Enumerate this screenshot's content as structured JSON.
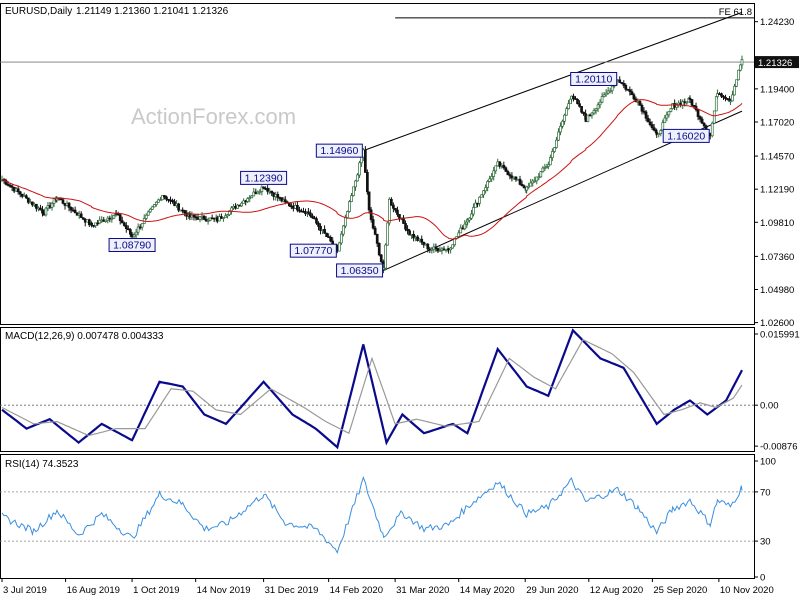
{
  "header": {
    "title": "EURUSD,Daily",
    "ohlc": "1.21149 1.21360 1.21041 1.21326"
  },
  "watermark": "ActionForex.com",
  "colors": {
    "bull": "#2e6b3a",
    "bear": "#111111",
    "sma": "#cc1111",
    "macd": "#0a0a8c",
    "signal": "#999999",
    "rsi": "#3a8fe0",
    "box_text": "#0a0a8c",
    "box_fill": "#eef0fb",
    "price_tag": "#111111"
  },
  "chart_data": [
    {
      "type": "candlestick",
      "pane": "price",
      "ylim": [
        1.025,
        1.255
      ],
      "y_ticks": [
        "1.24230",
        "1.21920",
        "1.19400",
        "1.17020",
        "1.14570",
        "1.12190",
        "1.09810",
        "1.07360",
        "1.04980",
        "1.02600"
      ],
      "current_price": "1.21326",
      "x_range": [
        "2019-07-03",
        "2020-11-26"
      ],
      "dates": [
        "3 Jul 2019",
        "16 Aug 2019",
        "1 Oct 2019",
        "14 Nov 2019",
        "31 Dec 2019",
        "14 Feb 2020",
        "31 Mar 2020",
        "14 May 2020",
        "29 Jun 2020",
        "12 Aug 2020",
        "25 Sep 2020",
        "10 Nov 2020"
      ],
      "anchors": [
        [
          "2019-07-03",
          1.129
        ],
        [
          "2019-08-01",
          1.105
        ],
        [
          "2019-08-10",
          1.116
        ],
        [
          "2019-09-03",
          1.096
        ],
        [
          "2019-09-20",
          1.104
        ],
        [
          "2019-10-01",
          1.0879
        ],
        [
          "2019-10-22",
          1.118
        ],
        [
          "2019-11-10",
          1.102
        ],
        [
          "2019-11-29",
          1.1
        ],
        [
          "2019-12-31",
          1.1239
        ],
        [
          "2020-01-15",
          1.112
        ],
        [
          "2020-01-31",
          1.105
        ],
        [
          "2020-02-20",
          1.0777
        ],
        [
          "2020-03-09",
          1.1496
        ],
        [
          "2020-03-13",
          1.106
        ],
        [
          "2020-03-23",
          1.0635
        ],
        [
          "2020-03-27",
          1.114
        ],
        [
          "2020-04-10",
          1.09
        ],
        [
          "2020-04-24",
          1.079
        ],
        [
          "2020-05-07",
          1.079
        ],
        [
          "2020-05-20",
          1.1
        ],
        [
          "2020-06-10",
          1.14
        ],
        [
          "2020-06-30",
          1.122
        ],
        [
          "2020-07-15",
          1.14
        ],
        [
          "2020-07-31",
          1.19
        ],
        [
          "2020-08-10",
          1.172
        ],
        [
          "2020-09-01",
          1.2011
        ],
        [
          "2020-09-15",
          1.185
        ],
        [
          "2020-09-28",
          1.1602
        ],
        [
          "2020-10-09",
          1.182
        ],
        [
          "2020-10-21",
          1.186
        ],
        [
          "2020-11-04",
          1.1603
        ],
        [
          "2020-11-09",
          1.192
        ],
        [
          "2020-11-18",
          1.186
        ],
        [
          "2020-11-26",
          1.215
        ]
      ],
      "sma_series": "SMA",
      "annotations": [
        {
          "label": "1.08790",
          "date": "2019-10-01",
          "price": 1.0879,
          "pos": "below"
        },
        {
          "label": "1.12390",
          "date": "2019-12-31",
          "price": 1.1239,
          "pos": "above"
        },
        {
          "label": "1.07770",
          "date": "2020-02-20",
          "price": 1.0777,
          "pos": "left"
        },
        {
          "label": "1.14960",
          "date": "2020-03-09",
          "price": 1.1496,
          "pos": "left"
        },
        {
          "label": "1.06350",
          "date": "2020-03-23",
          "price": 1.0635,
          "pos": "left"
        },
        {
          "label": "1.20110",
          "date": "2020-09-01",
          "price": 1.2011,
          "pos": "left"
        },
        {
          "label": "1.16020",
          "date": "2020-11-04",
          "price": 1.1602,
          "pos": "left"
        }
      ],
      "fib_label": "FE 61.8",
      "fib_level": 1.245,
      "fib_start": "2020-03-31",
      "channel": {
        "lower": [
          [
            "2020-03-23",
            1.0635
          ],
          [
            "2020-11-26",
            1.178
          ]
        ],
        "upper": [
          [
            "2020-03-09",
            1.1496
          ],
          [
            "2020-11-26",
            1.249
          ]
        ]
      }
    },
    {
      "type": "line",
      "pane": "macd",
      "label": "MACD(12,26,9) 0.007478 0.004333",
      "ylim": [
        -0.0098,
        0.0165
      ],
      "y_ticks": [
        "0.015991",
        "0.00",
        "-0.00876"
      ],
      "series": [
        {
          "name": "MACD",
          "anchors": [
            [
              "2019-07-03",
              -0.001
            ],
            [
              "2019-07-20",
              -0.005
            ],
            [
              "2019-08-05",
              -0.003
            ],
            [
              "2019-08-25",
              -0.008
            ],
            [
              "2019-09-10",
              -0.004
            ],
            [
              "2019-10-01",
              -0.0075
            ],
            [
              "2019-10-20",
              0.005
            ],
            [
              "2019-11-05",
              0.004
            ],
            [
              "2019-11-20",
              -0.002
            ],
            [
              "2019-12-05",
              -0.004
            ],
            [
              "2019-12-31",
              0.005
            ],
            [
              "2020-01-20",
              -0.002
            ],
            [
              "2020-02-05",
              -0.005
            ],
            [
              "2020-02-20",
              -0.009
            ],
            [
              "2020-03-09",
              0.013
            ],
            [
              "2020-03-25",
              -0.008
            ],
            [
              "2020-04-05",
              -0.002
            ],
            [
              "2020-04-20",
              -0.006
            ],
            [
              "2020-05-10",
              -0.004
            ],
            [
              "2020-05-20",
              -0.006
            ],
            [
              "2020-06-10",
              0.012
            ],
            [
              "2020-06-30",
              0.004
            ],
            [
              "2020-07-15",
              0.002
            ],
            [
              "2020-08-01",
              0.016
            ],
            [
              "2020-08-20",
              0.01
            ],
            [
              "2020-09-05",
              0.008
            ],
            [
              "2020-09-28",
              -0.004
            ],
            [
              "2020-10-10",
              -0.001
            ],
            [
              "2020-10-21",
              0.001
            ],
            [
              "2020-11-02",
              -0.002
            ],
            [
              "2020-11-15",
              0.001
            ],
            [
              "2020-11-26",
              0.0075
            ]
          ]
        },
        {
          "name": "Signal",
          "anchors": [
            [
              "2019-07-03",
              -0.0005
            ],
            [
              "2019-07-25",
              -0.004
            ],
            [
              "2019-08-10",
              -0.0035
            ],
            [
              "2019-09-01",
              -0.0065
            ],
            [
              "2019-09-20",
              -0.005
            ],
            [
              "2019-10-10",
              -0.005
            ],
            [
              "2019-10-28",
              0.0035
            ],
            [
              "2019-11-12",
              0.003
            ],
            [
              "2019-11-28",
              -0.001
            ],
            [
              "2019-12-15",
              -0.002
            ],
            [
              "2020-01-05",
              0.0035
            ],
            [
              "2020-01-28",
              -0.0005
            ],
            [
              "2020-02-12",
              -0.0035
            ],
            [
              "2020-02-28",
              -0.006
            ],
            [
              "2020-03-15",
              0.01
            ],
            [
              "2020-03-31",
              -0.004
            ],
            [
              "2020-04-15",
              -0.003
            ],
            [
              "2020-05-05",
              -0.0045
            ],
            [
              "2020-05-28",
              -0.0035
            ],
            [
              "2020-06-18",
              0.01
            ],
            [
              "2020-07-05",
              0.006
            ],
            [
              "2020-07-20",
              0.0035
            ],
            [
              "2020-08-08",
              0.014
            ],
            [
              "2020-08-28",
              0.011
            ],
            [
              "2020-09-12",
              0.007
            ],
            [
              "2020-10-03",
              -0.002
            ],
            [
              "2020-10-15",
              -0.001
            ],
            [
              "2020-10-28",
              0.0005
            ],
            [
              "2020-11-08",
              -0.0005
            ],
            [
              "2020-11-20",
              0.0015
            ],
            [
              "2020-11-26",
              0.0043
            ]
          ]
        }
      ]
    },
    {
      "type": "line",
      "pane": "rsi",
      "label": "RSI(14) 74.3523",
      "ylim": [
        0,
        100
      ],
      "y_ticks": [
        "100",
        "70",
        "30",
        "0"
      ],
      "levels": [
        70,
        30
      ],
      "series": [
        {
          "name": "RSI",
          "anchors": [
            [
              "2019-07-03",
              50
            ],
            [
              "2019-07-25",
              38
            ],
            [
              "2019-08-10",
              55
            ],
            [
              "2019-08-25",
              35
            ],
            [
              "2019-09-10",
              52
            ],
            [
              "2019-10-01",
              32
            ],
            [
              "2019-10-20",
              68
            ],
            [
              "2019-11-05",
              60
            ],
            [
              "2019-11-20",
              40
            ],
            [
              "2019-12-05",
              44
            ],
            [
              "2019-12-31",
              68
            ],
            [
              "2020-01-15",
              45
            ],
            [
              "2020-02-05",
              40
            ],
            [
              "2020-02-20",
              22
            ],
            [
              "2020-03-09",
              80
            ],
            [
              "2020-03-23",
              34
            ],
            [
              "2020-04-05",
              53
            ],
            [
              "2020-04-20",
              40
            ],
            [
              "2020-05-07",
              43
            ],
            [
              "2020-05-20",
              58
            ],
            [
              "2020-06-10",
              78
            ],
            [
              "2020-06-30",
              52
            ],
            [
              "2020-07-15",
              58
            ],
            [
              "2020-07-31",
              79
            ],
            [
              "2020-08-10",
              62
            ],
            [
              "2020-09-01",
              72
            ],
            [
              "2020-09-15",
              57
            ],
            [
              "2020-09-28",
              37
            ],
            [
              "2020-10-09",
              56
            ],
            [
              "2020-10-21",
              63
            ],
            [
              "2020-11-04",
              44
            ],
            [
              "2020-11-09",
              63
            ],
            [
              "2020-11-18",
              58
            ],
            [
              "2020-11-26",
              74
            ]
          ]
        }
      ]
    }
  ]
}
